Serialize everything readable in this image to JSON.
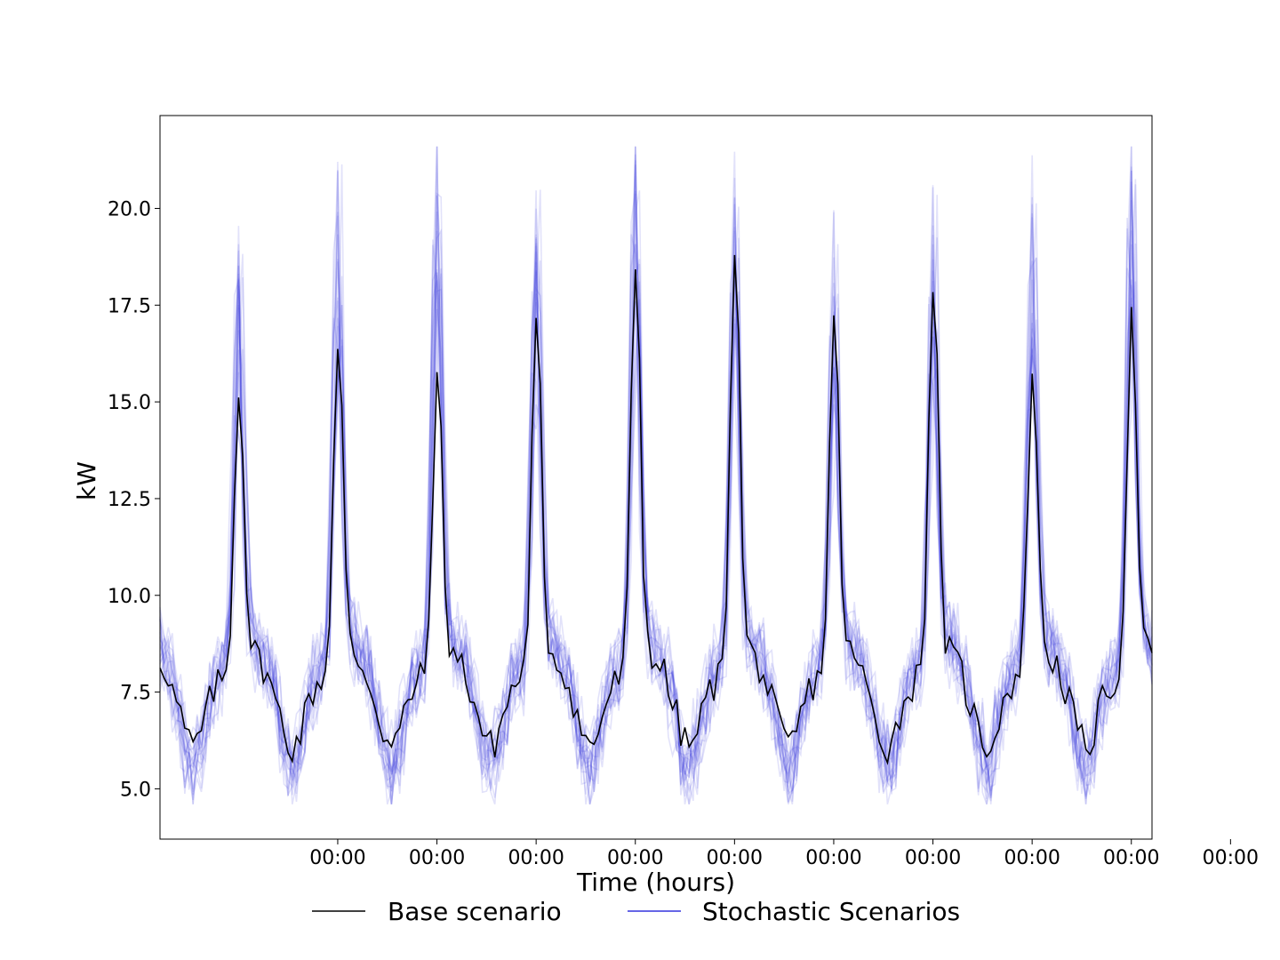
{
  "chart_data": {
    "type": "line",
    "title": "",
    "xlabel": "Time (hours)",
    "ylabel": "kW",
    "xlim": [
      -19,
      221
    ],
    "ylim": [
      3.7,
      22.4
    ],
    "yticks": [
      5.0,
      7.5,
      10.0,
      12.5,
      15.0,
      17.5,
      20.0
    ],
    "xticks": [
      {
        "x": 24,
        "label": "00:00"
      },
      {
        "x": 48,
        "label": "00:00"
      },
      {
        "x": 72,
        "label": "00:00"
      },
      {
        "x": 96,
        "label": "00:00"
      },
      {
        "x": 120,
        "label": "00:00"
      },
      {
        "x": 144,
        "label": "00:00"
      },
      {
        "x": 168,
        "label": "00:00"
      },
      {
        "x": 192,
        "label": "00:00"
      },
      {
        "x": 216,
        "label": "00:00"
      },
      {
        "x": 240,
        "label": "00:00"
      }
    ],
    "grid": false,
    "legend_position": "bottom-center",
    "series_colors": {
      "base": "#000000",
      "stochastic": "#3333dd"
    },
    "base_peaks": [
      {
        "x": 0,
        "y": 15.2
      },
      {
        "x": 24,
        "y": 16.3
      },
      {
        "x": 48,
        "y": 15.4
      },
      {
        "x": 72,
        "y": 16.9
      },
      {
        "x": 96,
        "y": 18.5
      },
      {
        "x": 120,
        "y": 19.1
      },
      {
        "x": 144,
        "y": 17.0
      },
      {
        "x": 168,
        "y": 18.1
      },
      {
        "x": 192,
        "y": 15.6
      },
      {
        "x": 216,
        "y": 17.1
      }
    ],
    "stochastic_peak_max": [
      18.7,
      20.5,
      21.6,
      19.9,
      21.3,
      20.3,
      18.9,
      19.6,
      20.3,
      21.3
    ],
    "stochastic_range": [
      4.6,
      21.6
    ],
    "stochastic_count": 20,
    "series": [
      {
        "name": "Base scenario"
      },
      {
        "name": "Stochastic Scenarios"
      }
    ]
  }
}
